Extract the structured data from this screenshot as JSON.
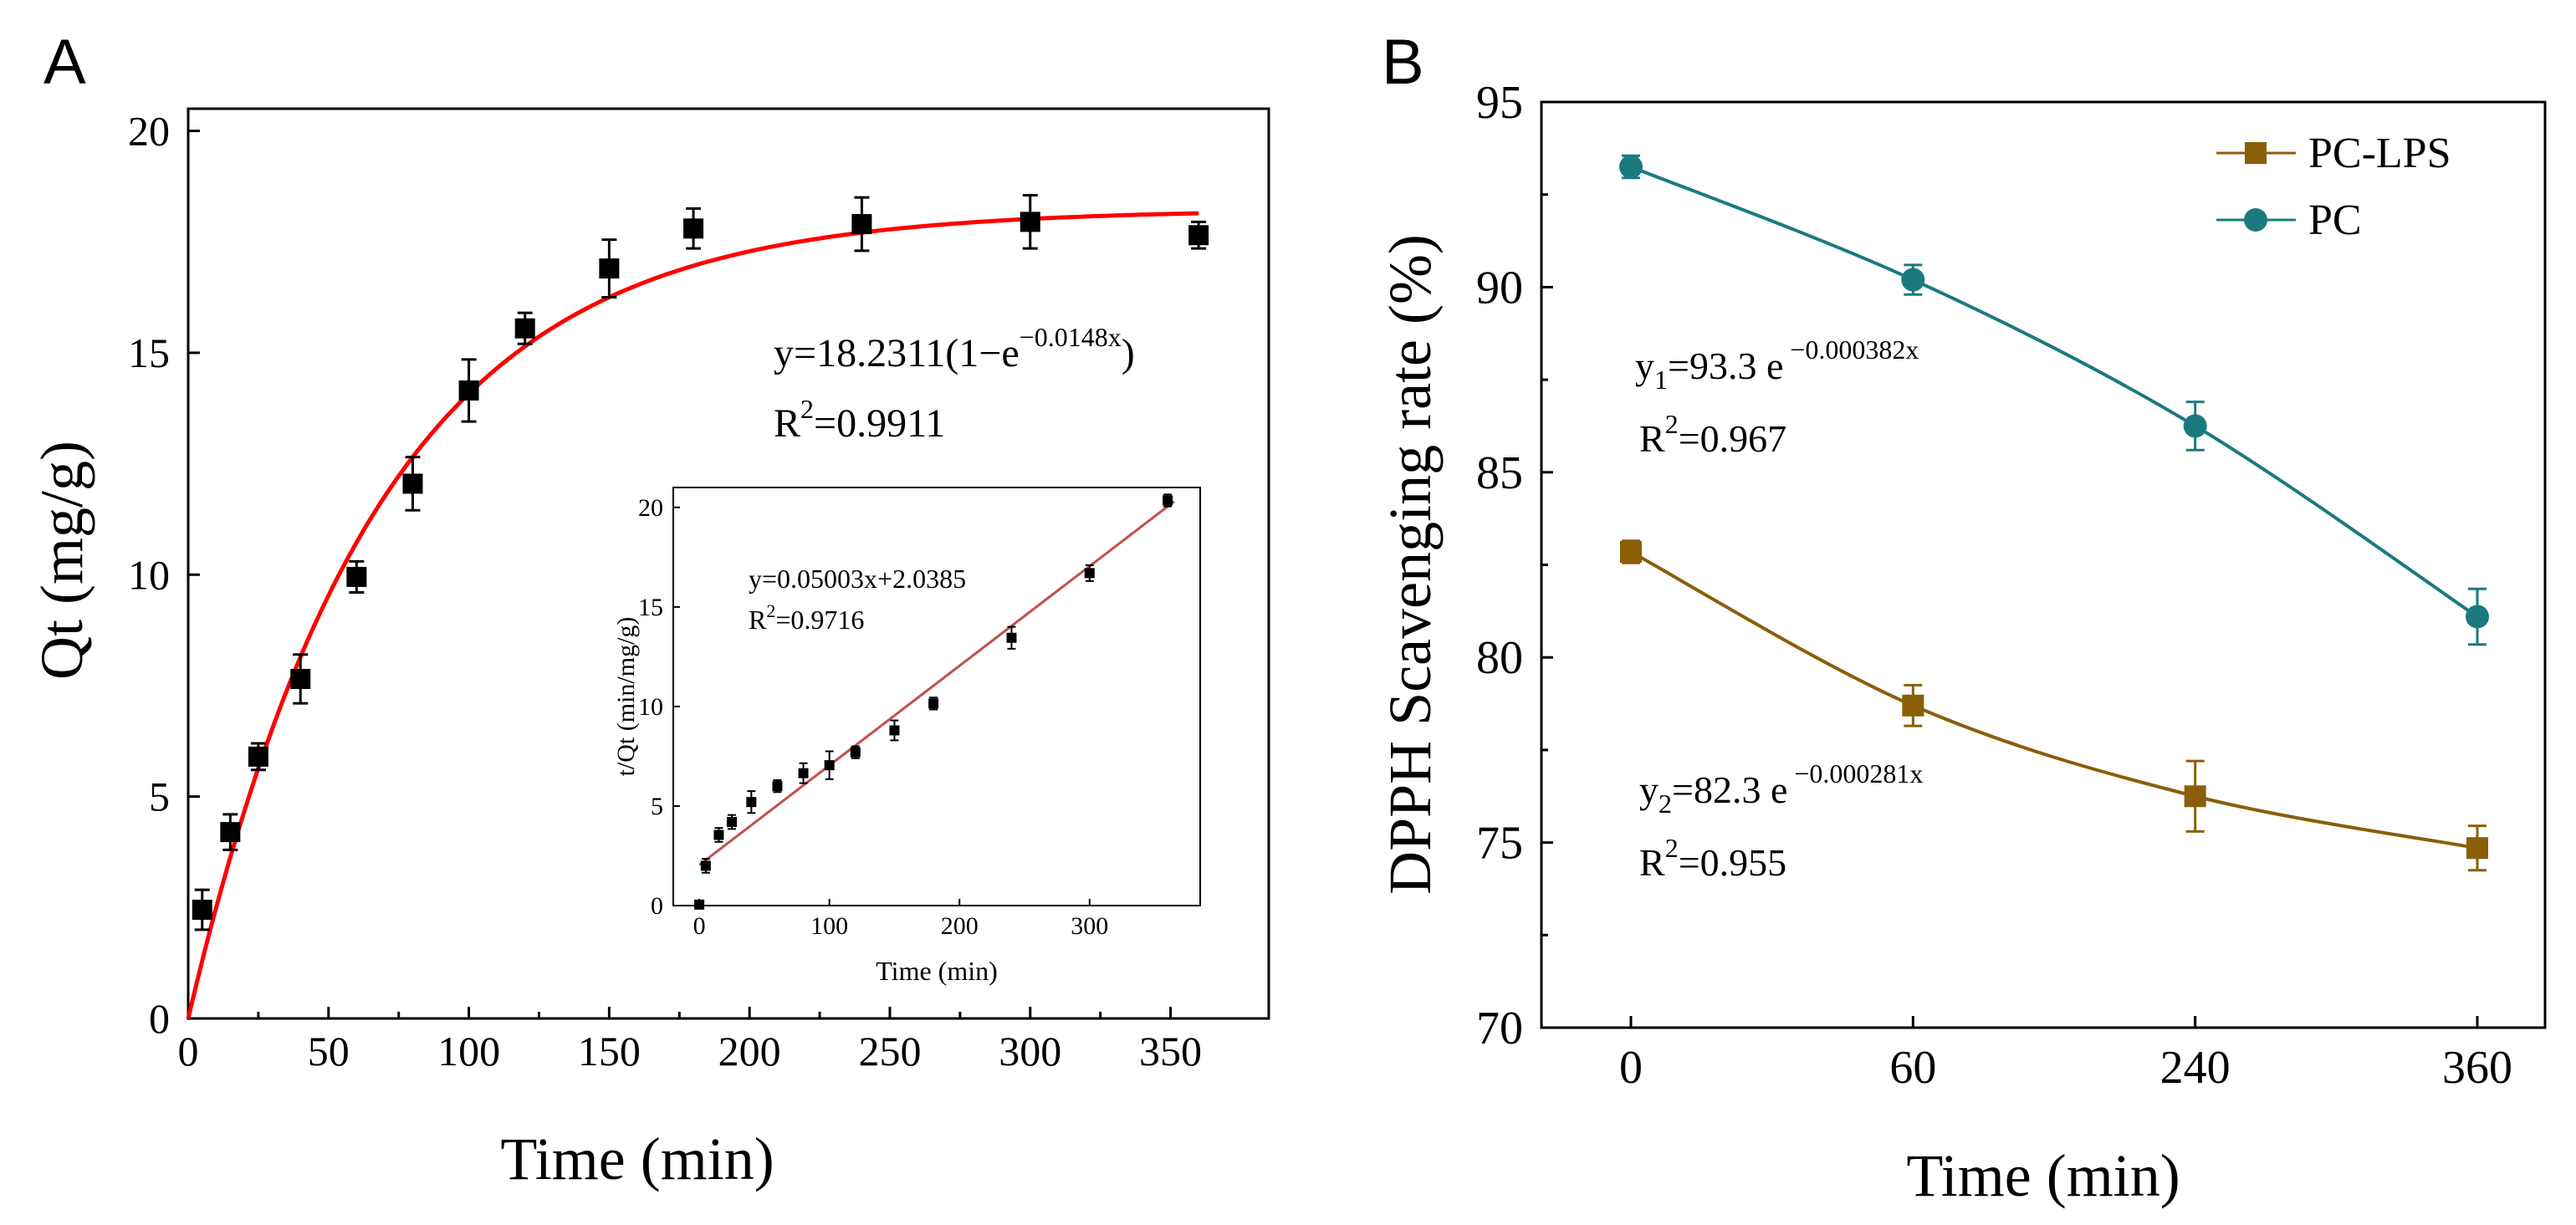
{
  "panels": {
    "a": {
      "letter": "A"
    },
    "b": {
      "letter": "B"
    }
  },
  "chart_data": [
    {
      "id": "A",
      "type": "scatter",
      "xlabel": "Time (min)",
      "ylabel": "Qt (mg/g)",
      "xlim": [
        0,
        385
      ],
      "ylim": [
        0,
        20.5
      ],
      "xticks": [
        "0",
        "50",
        "100",
        "150",
        "200",
        "250",
        "300",
        "350"
      ],
      "yticks": [
        "0",
        "5",
        "10",
        "15",
        "20"
      ],
      "series": [
        {
          "name": "Qt",
          "color": "#000000",
          "x": [
            5,
            15,
            25,
            40,
            60,
            80,
            100,
            120,
            150,
            180,
            240,
            300,
            360
          ],
          "y": [
            2.45,
            4.2,
            5.9,
            7.65,
            9.95,
            12.05,
            14.15,
            15.55,
            16.9,
            17.8,
            17.9,
            17.95,
            17.65
          ],
          "err": [
            0.45,
            0.4,
            0.3,
            0.55,
            0.35,
            0.6,
            0.7,
            0.35,
            0.65,
            0.45,
            0.6,
            0.6,
            0.3
          ]
        }
      ],
      "fit": {
        "color": "#ff0000",
        "qe": 18.2311,
        "k": 0.0148
      },
      "equation": {
        "prefix": "y=18.2311(1−e",
        "exponent": "−0.0148x",
        "suffix": ")"
      },
      "r2": {
        "base": "R",
        "sup": "2",
        "value": "=0.9911"
      },
      "inset": {
        "type": "scatter",
        "xlabel": "Time (min)",
        "ylabel": "t/Qt (min/mg/g)",
        "xlim": [
          -20,
          385
        ],
        "ylim": [
          0,
          21
        ],
        "xticks": [
          "0",
          "100",
          "200",
          "300"
        ],
        "yticks": [
          "0",
          "5",
          "10",
          "15",
          "20"
        ],
        "x": [
          0,
          5,
          15,
          25,
          40,
          60,
          80,
          100,
          120,
          150,
          180,
          240,
          300,
          360
        ],
        "y": [
          0.05,
          2.0,
          3.55,
          4.2,
          5.2,
          6.0,
          6.65,
          7.05,
          7.7,
          8.8,
          10.15,
          13.45,
          16.7,
          20.35
        ],
        "err": [
          0.2,
          0.35,
          0.35,
          0.35,
          0.55,
          0.3,
          0.5,
          0.7,
          0.3,
          0.5,
          0.3,
          0.55,
          0.4,
          0.3
        ],
        "fit": {
          "slope": 0.05003,
          "intercept": 2.0385,
          "color": "#c0504d"
        },
        "equation": "y=0.05003x+2.0385",
        "r2": {
          "base": "R",
          "sup": "2",
          "value": "=0.9716"
        }
      }
    },
    {
      "id": "B",
      "type": "line",
      "xlabel": "Time (min)",
      "ylabel": "DPPH Scavenging rate (%)",
      "categories": [
        "0",
        "60",
        "240",
        "360"
      ],
      "ylim": [
        70,
        95
      ],
      "yticks": [
        "70",
        "75",
        "80",
        "85",
        "90",
        "95"
      ],
      "legend_position": "top-right",
      "series": [
        {
          "name": "PC-LPS",
          "marker": "square",
          "color": "#8b5e0a",
          "values": [
            82.85,
            78.7,
            76.25,
            74.85
          ],
          "err": [
            0.3,
            0.55,
            0.95,
            0.6
          ]
        },
        {
          "name": "PC",
          "marker": "circle",
          "color": "#1a7a80",
          "values": [
            93.25,
            90.2,
            86.25,
            81.1
          ],
          "err": [
            0.3,
            0.4,
            0.65,
            0.75
          ]
        }
      ],
      "eq1": {
        "y": "y",
        "sub": "1",
        "mid": "=93.3 e",
        "sup": " −0.000382x"
      },
      "r2_1": {
        "base": "R",
        "sup": "2",
        "value": "=0.967"
      },
      "eq2": {
        "y": "y",
        "sub": "2",
        "mid": "=82.3 e",
        "sup": " −0.000281x"
      },
      "r2_2": {
        "base": "R",
        "sup": "2",
        "value": "=0.955"
      }
    }
  ]
}
